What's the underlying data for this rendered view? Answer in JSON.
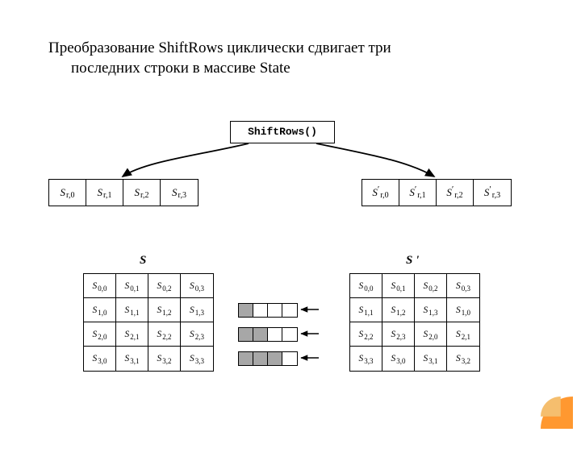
{
  "heading": {
    "line1": "Преобразование ShiftRows циклически сдвигает три",
    "line2": "последних строки в массиве State"
  },
  "diagram1": {
    "fn_label": "ShiftRows()",
    "left_row": [
      "S|r,0",
      "S|r,1",
      "S|r,2",
      "S|r,3"
    ],
    "right_row": [
      "S'|r,0",
      "S'|r,1",
      "S'|r,2",
      "S'|r,3"
    ],
    "arrow_color": "#000000"
  },
  "diagram2": {
    "title_left": "S",
    "title_right": "S '",
    "grid_left": [
      [
        "S|0,0",
        "S|0,1",
        "S|0,2",
        "S|0,3"
      ],
      [
        "S|1,0",
        "S|1,1",
        "S|1,2",
        "S|1,3"
      ],
      [
        "S|2,0",
        "S|2,1",
        "S|2,2",
        "S|2,3"
      ],
      [
        "S|3,0",
        "S|3,1",
        "S|3,2",
        "S|3,3"
      ]
    ],
    "grid_right": [
      [
        "S|0,0",
        "S|0,1",
        "S|0,2",
        "S|0,3"
      ],
      [
        "S|1,1",
        "S|1,2",
        "S|1,3",
        "S|1,0"
      ],
      [
        "S|2,2",
        "S|2,3",
        "S|2,0",
        "S|2,1"
      ],
      [
        "S|3,3",
        "S|3,0",
        "S|3,1",
        "S|3,2"
      ]
    ],
    "strips": [
      {
        "fills": [
          true,
          false,
          false,
          false
        ]
      },
      {
        "fills": [
          true,
          true,
          false,
          false
        ]
      },
      {
        "fills": [
          true,
          true,
          true,
          false
        ]
      }
    ],
    "strip_fill_color": "#a7a7a7"
  },
  "corner": {
    "outer": "#ff9830",
    "inner": "#f5be6e"
  }
}
